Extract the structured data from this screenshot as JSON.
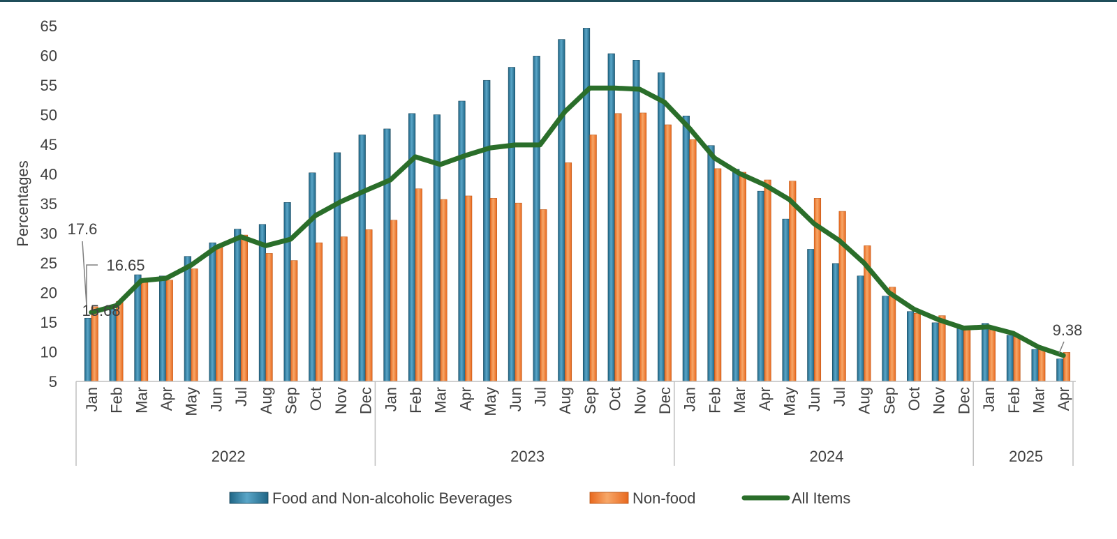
{
  "colors": {
    "food": "#1f6585",
    "food_light": "#5aa6c8",
    "nonfood": "#e8681e",
    "nonfood_light": "#f7a768",
    "allitems": "#2a6e2a",
    "text": "#404040",
    "axis": "#bfbfbf"
  },
  "chart_data": {
    "type": "bar",
    "title": "",
    "xlabel": "",
    "ylabel": "Percentages",
    "ylim": [
      5,
      65
    ],
    "yticks": [
      5,
      10,
      15,
      20,
      25,
      30,
      35,
      40,
      45,
      50,
      55,
      60,
      65
    ],
    "grid": false,
    "legend_position": "bottom",
    "years": [
      {
        "label": "2022",
        "count": 12
      },
      {
        "label": "2023",
        "count": 12
      },
      {
        "label": "2024",
        "count": 12
      },
      {
        "label": "2025",
        "count": 4
      }
    ],
    "categories": [
      "Jan",
      "Feb",
      "Mar",
      "Apr",
      "May",
      "Jun",
      "Jul",
      "Aug",
      "Sep",
      "Oct",
      "Nov",
      "Dec",
      "Jan",
      "Feb",
      "Mar",
      "Apr",
      "May",
      "Jun",
      "Jul",
      "Aug",
      "Sep",
      "Oct",
      "Nov",
      "Dec",
      "Jan",
      "Feb",
      "Mar",
      "Apr",
      "May",
      "Jun",
      "Jul",
      "Aug",
      "Sep",
      "Oct",
      "Nov",
      "Dec",
      "Jan",
      "Feb",
      "Mar",
      "Apr"
    ],
    "series": [
      {
        "name": "Food and Non-alcoholic Beverages",
        "type": "bar",
        "values": [
          15.68,
          17.2,
          23.0,
          22.8,
          26.1,
          28.4,
          30.7,
          31.5,
          35.2,
          40.2,
          43.6,
          46.6,
          47.6,
          50.2,
          50.0,
          52.3,
          55.8,
          58.0,
          59.9,
          62.7,
          64.6,
          60.3,
          59.2,
          57.1,
          49.8,
          44.8,
          40.8,
          37.1,
          32.4,
          27.3,
          24.9,
          22.8,
          19.4,
          16.8,
          14.9,
          13.9,
          14.8,
          12.8,
          10.4,
          8.8
        ]
      },
      {
        "name": "Non-food",
        "type": "bar",
        "values": [
          17.6,
          18.5,
          21.7,
          22.1,
          24.0,
          28.0,
          29.7,
          26.6,
          25.4,
          28.4,
          29.4,
          30.6,
          32.2,
          37.5,
          35.7,
          36.3,
          35.9,
          35.1,
          34.0,
          41.9,
          46.6,
          50.2,
          50.3,
          48.3,
          45.8,
          40.9,
          40.3,
          39.0,
          38.8,
          35.9,
          33.7,
          27.9,
          20.9,
          16.5,
          16.1,
          14.1,
          13.7,
          12.6,
          10.8,
          9.9
        ]
      },
      {
        "name": "All Items",
        "type": "line",
        "values": [
          16.65,
          17.8,
          22.0,
          22.4,
          24.6,
          27.6,
          29.4,
          27.9,
          29.0,
          33.0,
          35.3,
          37.2,
          39.0,
          42.9,
          41.6,
          43.1,
          44.4,
          44.9,
          44.9,
          50.5,
          54.5,
          54.5,
          54.3,
          52.1,
          47.7,
          42.7,
          40.1,
          38.2,
          35.7,
          31.6,
          28.8,
          25.0,
          20.0,
          17.2,
          15.4,
          14.0,
          14.2,
          13.1,
          10.8,
          9.38
        ]
      }
    ],
    "data_labels": [
      {
        "series": 1,
        "index": 0,
        "text": "17.6"
      },
      {
        "series": 2,
        "index": 0,
        "text": "16.65"
      },
      {
        "series": 0,
        "index": 0,
        "text": "15.68"
      },
      {
        "series": 2,
        "index": 39,
        "text": "9.38"
      }
    ]
  }
}
